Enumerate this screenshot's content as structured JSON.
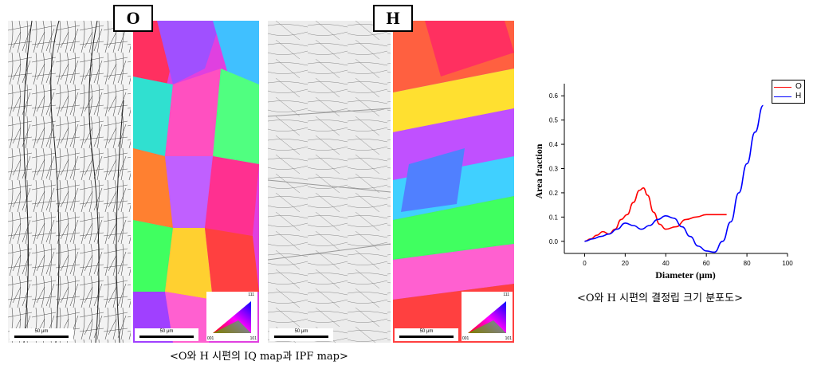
{
  "figure": {
    "panel_labels": [
      "O",
      "H"
    ],
    "scale_bar_text": "50 μm",
    "left_caption": "<O와 H 시편의 IQ map과 IPF map>",
    "right_caption": "<O와 H 시편의 결정립 크기 분포도>",
    "triangle_corner_labels": [
      "001",
      "101",
      "111"
    ]
  },
  "chart_data": {
    "type": "line",
    "title": "",
    "xlabel": "Diameter (μm)",
    "ylabel": "Area fraction",
    "xlim": [
      -10,
      100
    ],
    "ylim": [
      -0.05,
      0.65
    ],
    "xticks": [
      0,
      20,
      40,
      60,
      80,
      100
    ],
    "yticks": [
      0.0,
      0.1,
      0.2,
      0.3,
      0.4,
      0.5,
      0.6
    ],
    "ytick_labels": [
      "0.0",
      "0.1",
      "0.2",
      "0.3",
      "0.4",
      "0.5",
      "0.6"
    ],
    "legend_position": "top-right",
    "series": [
      {
        "name": "O",
        "color": "#ff0000",
        "x": [
          0,
          3,
          6,
          9,
          12,
          15,
          18,
          21,
          24,
          27,
          29,
          31,
          34,
          37,
          40,
          45,
          50,
          55,
          60,
          65,
          70
        ],
        "y": [
          0.0,
          0.01,
          0.025,
          0.04,
          0.03,
          0.05,
          0.09,
          0.11,
          0.16,
          0.21,
          0.22,
          0.19,
          0.12,
          0.07,
          0.05,
          0.06,
          0.09,
          0.1,
          0.11,
          0.11,
          0.11
        ]
      },
      {
        "name": "H",
        "color": "#0000ff",
        "x": [
          0,
          4,
          8,
          12,
          16,
          20,
          24,
          28,
          32,
          36,
          40,
          44,
          48,
          52,
          56,
          60,
          64,
          68,
          72,
          76,
          80,
          84,
          88
        ],
        "y": [
          0.0,
          0.01,
          0.02,
          0.03,
          0.05,
          0.075,
          0.065,
          0.05,
          0.065,
          0.09,
          0.105,
          0.095,
          0.06,
          0.02,
          -0.02,
          -0.04,
          -0.045,
          0.0,
          0.08,
          0.2,
          0.32,
          0.45,
          0.56
        ]
      }
    ]
  }
}
